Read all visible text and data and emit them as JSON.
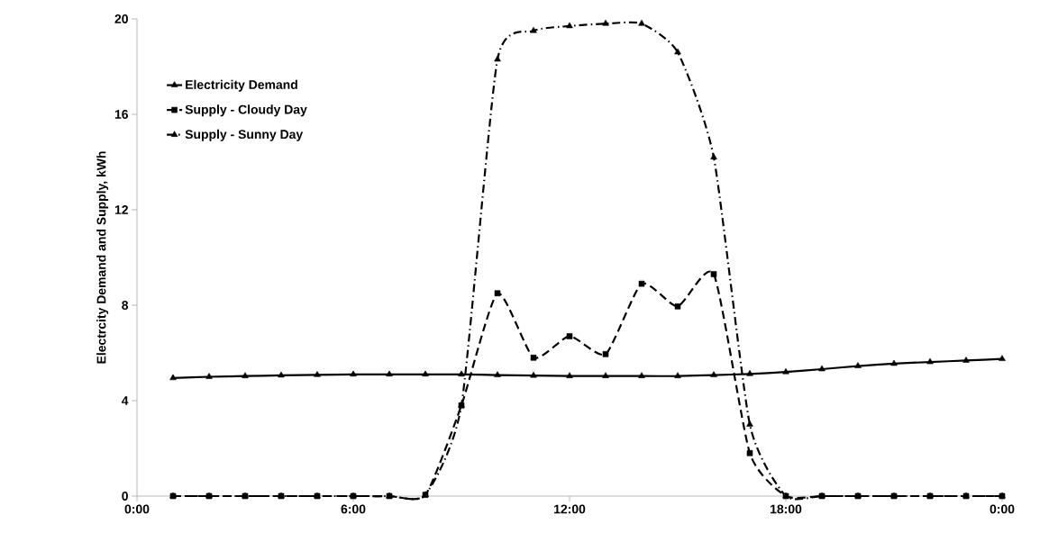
{
  "chart_data": {
    "type": "line",
    "ylabel": "Electrcity Demand and Supply, kWh",
    "x": [
      1,
      2,
      3,
      4,
      5,
      6,
      7,
      8,
      9,
      10,
      11,
      12,
      13,
      14,
      15,
      16,
      17,
      18,
      19,
      20,
      21,
      22,
      23,
      24
    ],
    "series": [
      {
        "name": "Electricity Demand",
        "color": "#000000",
        "marker": "triangle",
        "line_style": "solid",
        "values": [
          4.95,
          5.0,
          5.03,
          5.06,
          5.08,
          5.1,
          5.1,
          5.1,
          5.1,
          5.07,
          5.05,
          5.03,
          5.03,
          5.03,
          5.03,
          5.07,
          5.12,
          5.2,
          5.32,
          5.45,
          5.55,
          5.62,
          5.68,
          5.75
        ]
      },
      {
        "name": "Supply - Cloudy Day",
        "color": "#000000",
        "marker": "square",
        "line_style": "dashed",
        "values": [
          0,
          0,
          0,
          0,
          0,
          0,
          0,
          0.05,
          3.8,
          8.5,
          5.8,
          6.7,
          5.95,
          8.9,
          7.95,
          9.3,
          1.8,
          0,
          0,
          0,
          0,
          0,
          0,
          0
        ]
      },
      {
        "name": "Supply - Sunny Day",
        "color": "#000000",
        "marker": "triangle",
        "line_style": "dashdot",
        "values": [
          0,
          0,
          0,
          0,
          0,
          0,
          0,
          0.05,
          3.8,
          18.3,
          19.5,
          19.7,
          19.8,
          19.8,
          18.6,
          14.2,
          3.0,
          0,
          0,
          0,
          0,
          0,
          0,
          0
        ]
      }
    ],
    "xlim": [
      0,
      24
    ],
    "xticks": [
      {
        "value": 0,
        "label": "0:00"
      },
      {
        "value": 6,
        "label": "6:00"
      },
      {
        "value": 12,
        "label": "12:00"
      },
      {
        "value": 18,
        "label": "18:00"
      },
      {
        "value": 24,
        "label": "0:00"
      }
    ],
    "ylim": [
      0,
      20
    ],
    "yticks": [
      0,
      4,
      8,
      12,
      16,
      20
    ],
    "legend": "top left"
  }
}
